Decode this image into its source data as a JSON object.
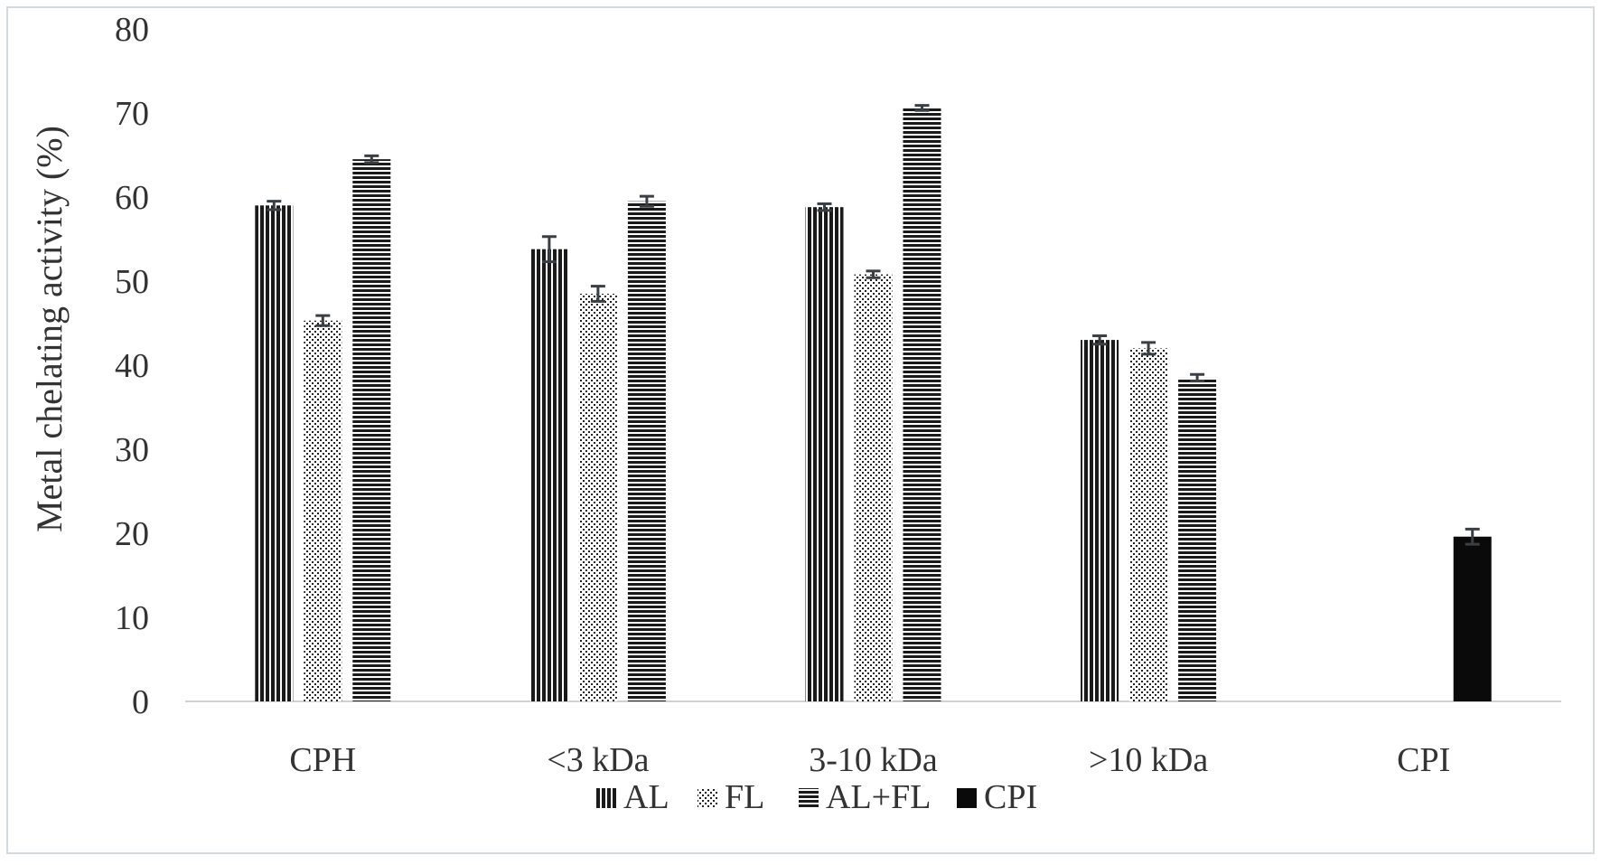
{
  "chart_data": {
    "type": "bar",
    "title": "",
    "xlabel": "",
    "ylabel": "Metal chelating activity (%)",
    "ylim": [
      0,
      80
    ],
    "yticks": [
      0,
      10,
      20,
      30,
      40,
      50,
      60,
      70,
      80
    ],
    "grid": false,
    "legend_position": "bottom",
    "categories": [
      "CPH",
      "<3 kDa",
      "3-10 kDa",
      ">10 kDa",
      "CPI"
    ],
    "series": [
      {
        "name": "AL",
        "pattern": "vertical-lines",
        "values": [
          59,
          53.8,
          58.8,
          43,
          null
        ],
        "errors": [
          0.5,
          1.5,
          0.4,
          0.5,
          null
        ]
      },
      {
        "name": "FL",
        "pattern": "dots",
        "values": [
          45.3,
          48.5,
          50.8,
          42,
          null
        ],
        "errors": [
          0.6,
          0.9,
          0.4,
          0.7,
          null
        ]
      },
      {
        "name": "AL+FL",
        "pattern": "horizontal-lines",
        "values": [
          64.5,
          59.5,
          70.6,
          38.5,
          null
        ],
        "errors": [
          0.4,
          0.6,
          0.3,
          0.4,
          null
        ]
      },
      {
        "name": "CPI",
        "pattern": "solid",
        "values": [
          null,
          null,
          null,
          null,
          19.6
        ],
        "errors": [
          null,
          null,
          null,
          null,
          0.9
        ]
      }
    ]
  }
}
